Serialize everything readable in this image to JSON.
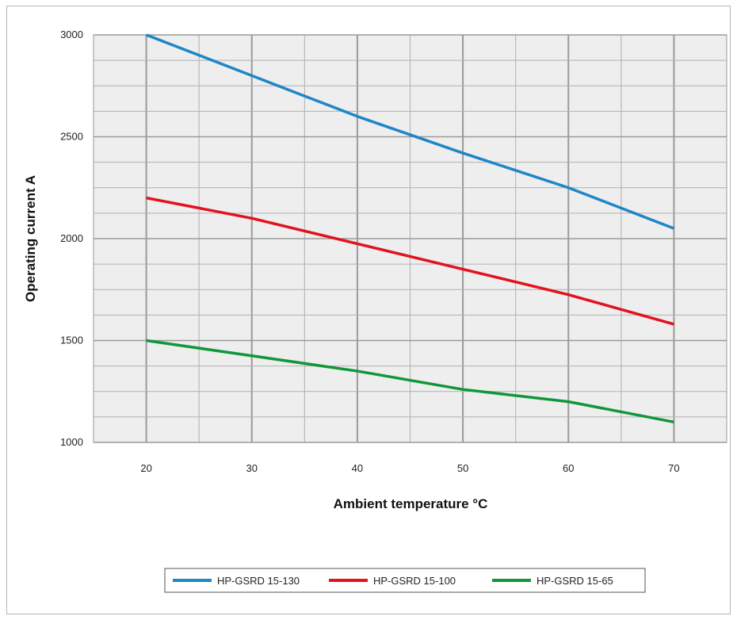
{
  "chart_data": {
    "type": "line",
    "xlabel": "Ambient temperature °C",
    "ylabel": "Operating current A",
    "xlim": [
      15,
      75
    ],
    "ylim": [
      1000,
      3000
    ],
    "x_ticks": [
      20,
      30,
      40,
      50,
      60,
      70
    ],
    "y_ticks": [
      1000,
      1500,
      2000,
      2500,
      3000
    ],
    "x_minor_step": 5,
    "y_minor_step": 125,
    "grid": true,
    "plot_background": "#eeeeee",
    "grid_color": "#b0b0b0",
    "legend_position": "bottom-center",
    "series": [
      {
        "name": "HP-GSRD 15-130",
        "color": "#1f86c8",
        "x": [
          20,
          30,
          40,
          50,
          60,
          70
        ],
        "values": [
          3000,
          2800,
          2600,
          2420,
          2250,
          2050
        ]
      },
      {
        "name": "HP-GSRD 15-100",
        "color": "#e3121e",
        "x": [
          20,
          30,
          40,
          50,
          60,
          70
        ],
        "values": [
          2200,
          2100,
          1975,
          1850,
          1725,
          1580
        ]
      },
      {
        "name": "HP-GSRD 15-65",
        "color": "#12963c",
        "x": [
          20,
          30,
          40,
          50,
          60,
          70
        ],
        "values": [
          1500,
          1425,
          1350,
          1260,
          1200,
          1100
        ]
      }
    ]
  }
}
